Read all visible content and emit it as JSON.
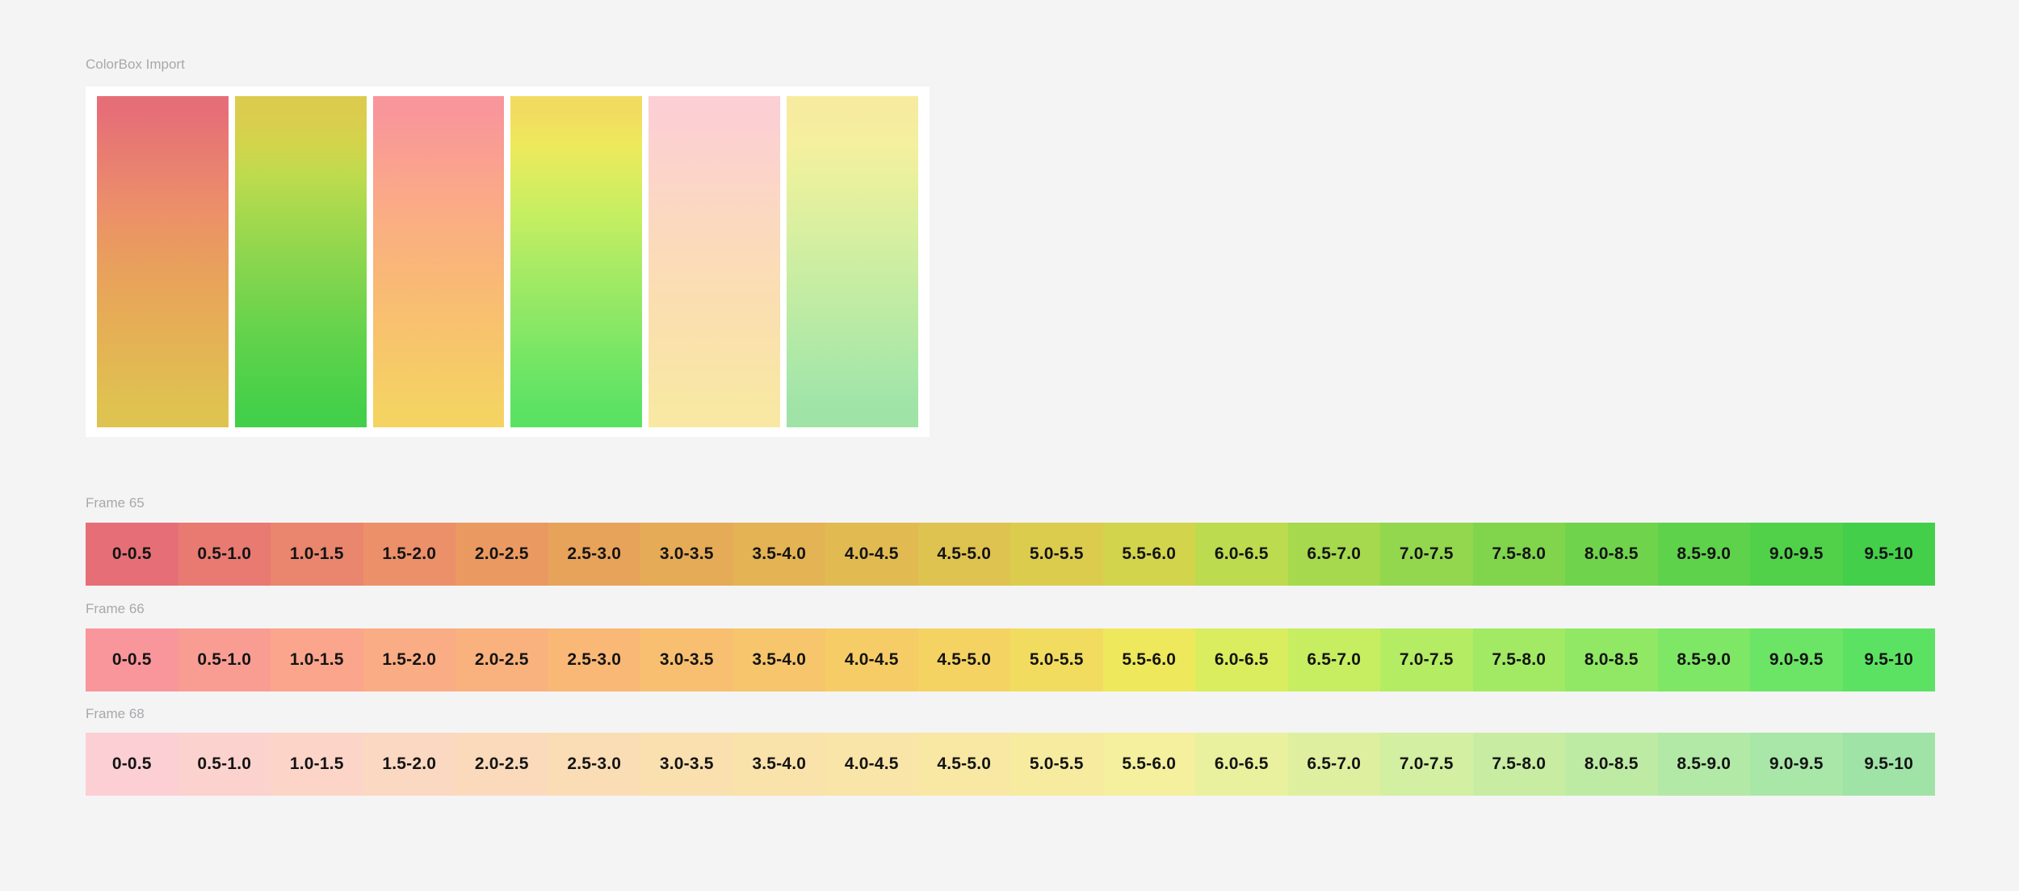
{
  "canvas": {
    "background": "#f4f4f5"
  },
  "text_colors": {
    "frame_label": "#a8a8ab",
    "cell_label": "#141414"
  },
  "import_frame": {
    "title": "ColorBox Import",
    "background": "#ffffff",
    "columns": [
      {
        "name": "frame65-low",
        "colors": [
          "#e66f77",
          "#e87a72",
          "#ea856e",
          "#ec9069",
          "#ea9a60",
          "#e8a35b",
          "#e6ab57",
          "#e4b354",
          "#e1bb52",
          "#dfc350"
        ]
      },
      {
        "name": "frame65-high",
        "colors": [
          "#dccc4e",
          "#d2d54c",
          "#bcdb4e",
          "#a6d94e",
          "#93d74e",
          "#81d54d",
          "#6fd44c",
          "#5fd24b",
          "#51d14a",
          "#44cf4a"
        ]
      },
      {
        "name": "frame66-low",
        "colors": [
          "#f9969b",
          "#f99d93",
          "#faa58c",
          "#faac84",
          "#f9b27d",
          "#f9b876",
          "#f8bf70",
          "#f7c56b",
          "#f6cc66",
          "#f4d363"
        ]
      },
      {
        "name": "frame66-high",
        "colors": [
          "#f2dc60",
          "#eee95c",
          "#d9ed5f",
          "#c7ee61",
          "#b4ec63",
          "#a2ea64",
          "#90e865",
          "#7ee765",
          "#6ce465",
          "#5ce263"
        ]
      },
      {
        "name": "frame68-low",
        "colors": [
          "#fccfd4",
          "#fcd2ce",
          "#fcd5c8",
          "#fbd8c1",
          "#fbdabb",
          "#fbddb5",
          "#fadfaf",
          "#fae2ab",
          "#f9e5a7",
          "#f8e8a3"
        ]
      },
      {
        "name": "frame68-high",
        "colors": [
          "#f7eba0",
          "#f4f09e",
          "#e9f19e",
          "#def09f",
          "#d3efa1",
          "#c8eda2",
          "#bdeba4",
          "#b2e9a6",
          "#a8e7a8",
          "#9fe3a7"
        ]
      }
    ]
  },
  "strips": [
    {
      "title": "Frame 65",
      "cells": [
        {
          "label": "0-0.5",
          "color": "#e66f77"
        },
        {
          "label": "0.5-1.0",
          "color": "#e87a72"
        },
        {
          "label": "1.0-1.5",
          "color": "#ea856e"
        },
        {
          "label": "1.5-2.0",
          "color": "#ec9069"
        },
        {
          "label": "2.0-2.5",
          "color": "#ea9a60"
        },
        {
          "label": "2.5-3.0",
          "color": "#e8a35b"
        },
        {
          "label": "3.0-3.5",
          "color": "#e6ab57"
        },
        {
          "label": "3.5-4.0",
          "color": "#e4b354"
        },
        {
          "label": "4.0-4.5",
          "color": "#e1bb52"
        },
        {
          "label": "4.5-5.0",
          "color": "#dfc350"
        },
        {
          "label": "5.0-5.5",
          "color": "#dccc4e"
        },
        {
          "label": "5.5-6.0",
          "color": "#d2d54c"
        },
        {
          "label": "6.0-6.5",
          "color": "#bcdb4e"
        },
        {
          "label": "6.5-7.0",
          "color": "#a6d94e"
        },
        {
          "label": "7.0-7.5",
          "color": "#93d74e"
        },
        {
          "label": "7.5-8.0",
          "color": "#81d54d"
        },
        {
          "label": "8.0-8.5",
          "color": "#6fd44c"
        },
        {
          "label": "8.5-9.0",
          "color": "#5fd24b"
        },
        {
          "label": "9.0-9.5",
          "color": "#51d14a"
        },
        {
          "label": "9.5-10",
          "color": "#44cf4a"
        }
      ]
    },
    {
      "title": "Frame 66",
      "cells": [
        {
          "label": "0-0.5",
          "color": "#f9969b"
        },
        {
          "label": "0.5-1.0",
          "color": "#f99d93"
        },
        {
          "label": "1.0-1.5",
          "color": "#faa58c"
        },
        {
          "label": "1.5-2.0",
          "color": "#faac84"
        },
        {
          "label": "2.0-2.5",
          "color": "#f9b27d"
        },
        {
          "label": "2.5-3.0",
          "color": "#f9b876"
        },
        {
          "label": "3.0-3.5",
          "color": "#f8bf70"
        },
        {
          "label": "3.5-4.0",
          "color": "#f7c56b"
        },
        {
          "label": "4.0-4.5",
          "color": "#f6cc66"
        },
        {
          "label": "4.5-5.0",
          "color": "#f4d363"
        },
        {
          "label": "5.0-5.5",
          "color": "#f2dc60"
        },
        {
          "label": "5.5-6.0",
          "color": "#eee95c"
        },
        {
          "label": "6.0-6.5",
          "color": "#d9ed5f"
        },
        {
          "label": "6.5-7.0",
          "color": "#c7ee61"
        },
        {
          "label": "7.0-7.5",
          "color": "#b4ec63"
        },
        {
          "label": "7.5-8.0",
          "color": "#a2ea64"
        },
        {
          "label": "8.0-8.5",
          "color": "#90e865"
        },
        {
          "label": "8.5-9.0",
          "color": "#7ee765"
        },
        {
          "label": "9.0-9.5",
          "color": "#6ce465"
        },
        {
          "label": "9.5-10",
          "color": "#5ce263"
        }
      ]
    },
    {
      "title": "Frame 68",
      "cells": [
        {
          "label": "0-0.5",
          "color": "#fccfd4"
        },
        {
          "label": "0.5-1.0",
          "color": "#fcd2ce"
        },
        {
          "label": "1.0-1.5",
          "color": "#fcd5c8"
        },
        {
          "label": "1.5-2.0",
          "color": "#fbd8c1"
        },
        {
          "label": "2.0-2.5",
          "color": "#fbdabb"
        },
        {
          "label": "2.5-3.0",
          "color": "#fbddb5"
        },
        {
          "label": "3.0-3.5",
          "color": "#fadfaf"
        },
        {
          "label": "3.5-4.0",
          "color": "#fae2ab"
        },
        {
          "label": "4.0-4.5",
          "color": "#f9e5a7"
        },
        {
          "label": "4.5-5.0",
          "color": "#f8e8a3"
        },
        {
          "label": "5.0-5.5",
          "color": "#f7eba0"
        },
        {
          "label": "5.5-6.0",
          "color": "#f4f09e"
        },
        {
          "label": "6.0-6.5",
          "color": "#e9f19e"
        },
        {
          "label": "6.5-7.0",
          "color": "#def09f"
        },
        {
          "label": "7.0-7.5",
          "color": "#d3efa1"
        },
        {
          "label": "7.5-8.0",
          "color": "#c8eda2"
        },
        {
          "label": "8.0-8.5",
          "color": "#bdeba4"
        },
        {
          "label": "8.5-9.0",
          "color": "#b2e9a6"
        },
        {
          "label": "9.0-9.5",
          "color": "#a8e7a8"
        },
        {
          "label": "9.5-10",
          "color": "#9fe3a7"
        }
      ]
    }
  ]
}
